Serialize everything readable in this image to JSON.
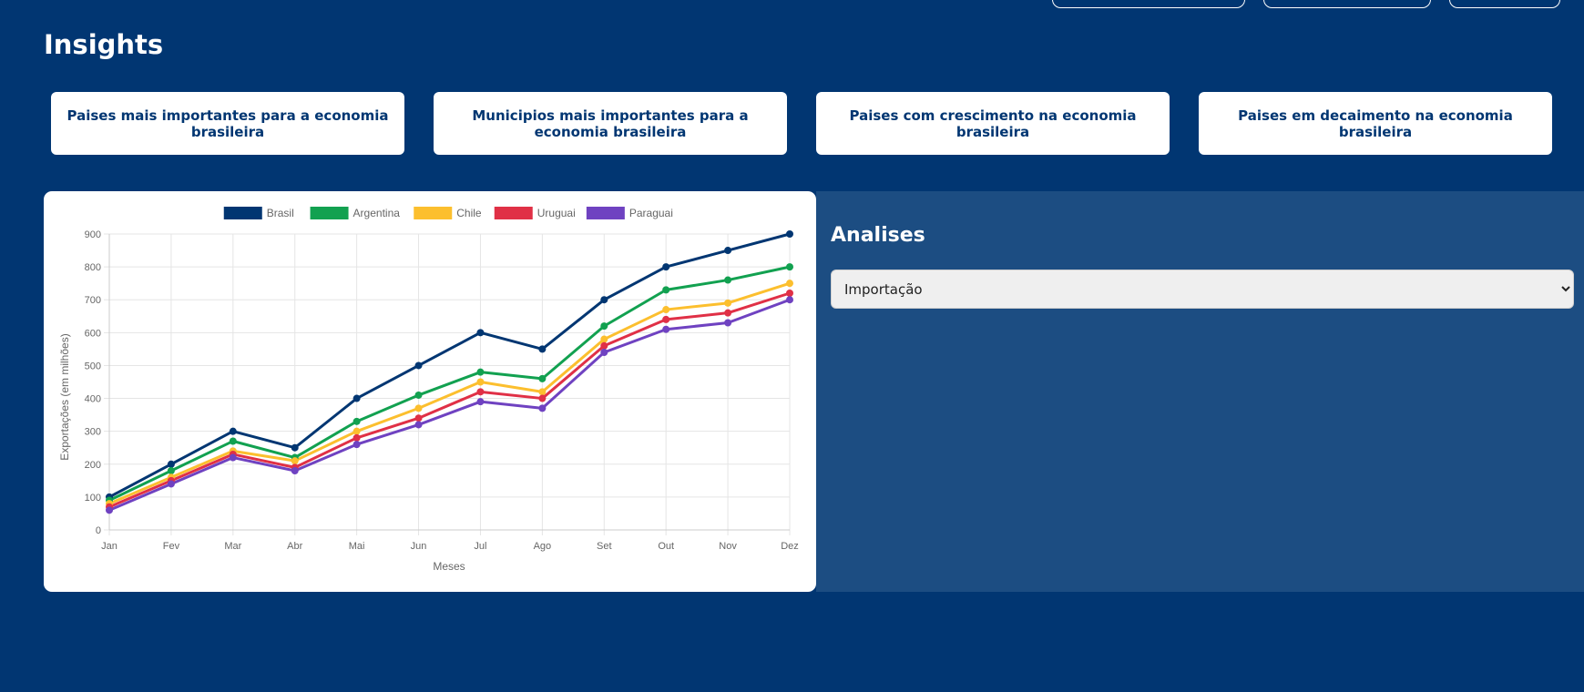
{
  "page": {
    "title": "Insights"
  },
  "cards": [
    {
      "label": "Paises mais importantes para a economia brasileira"
    },
    {
      "label": "Municipios mais importantes para a economia brasileira"
    },
    {
      "label": "Paises com crescimento na economia brasileira"
    },
    {
      "label": "Paises em decaimento na economia brasileira"
    }
  ],
  "analysis": {
    "title": "Analises",
    "selected": "Importação"
  },
  "chart_data": {
    "type": "line",
    "title": "",
    "xlabel": "Meses",
    "ylabel": "Exportações (em milhões)",
    "ylim": [
      0,
      900
    ],
    "yticks": [
      0,
      100,
      200,
      300,
      400,
      500,
      600,
      700,
      800,
      900
    ],
    "grid": true,
    "legend_position": "top",
    "categories": [
      "Jan",
      "Fev",
      "Mar",
      "Abr",
      "Mai",
      "Jun",
      "Jul",
      "Ago",
      "Set",
      "Out",
      "Nov",
      "Dez"
    ],
    "series": [
      {
        "name": "Brasil",
        "color": "#013672",
        "values": [
          100,
          200,
          300,
          250,
          400,
          500,
          600,
          550,
          700,
          800,
          850,
          900
        ]
      },
      {
        "name": "Argentina",
        "color": "#12a150",
        "values": [
          90,
          180,
          270,
          220,
          330,
          410,
          480,
          460,
          620,
          730,
          760,
          800
        ]
      },
      {
        "name": "Chile",
        "color": "#fcbf2e",
        "values": [
          80,
          160,
          240,
          210,
          300,
          370,
          450,
          420,
          580,
          670,
          690,
          750
        ]
      },
      {
        "name": "Uruguai",
        "color": "#e03046",
        "values": [
          70,
          150,
          230,
          190,
          280,
          340,
          420,
          400,
          560,
          640,
          660,
          720
        ]
      },
      {
        "name": "Paraguai",
        "color": "#6f42c1",
        "values": [
          60,
          140,
          220,
          180,
          260,
          320,
          390,
          370,
          540,
          610,
          630,
          700
        ]
      }
    ]
  }
}
